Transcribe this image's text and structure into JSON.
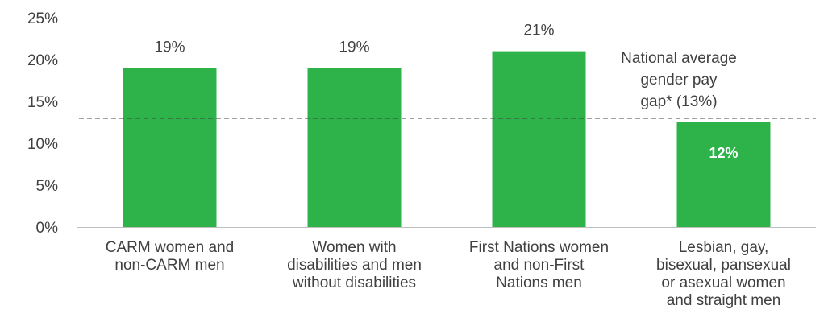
{
  "chart_data": {
    "type": "bar",
    "categories": [
      [
        "CARM women and",
        "non-CARM men"
      ],
      [
        "Women with",
        "disabilities and men",
        "without disabilities"
      ],
      [
        "First Nations women",
        "and non-First",
        "Nations men"
      ],
      [
        "Lesbian, gay,",
        "bisexual, pansexual",
        "or asexual women",
        "and straight men"
      ]
    ],
    "values": [
      19,
      19,
      21,
      12.5
    ],
    "data_labels": [
      "19%",
      "19%",
      "21%",
      "12%"
    ],
    "ylim": [
      0,
      25
    ],
    "yticks": [
      "0%",
      "5%",
      "10%",
      "15%",
      "20%",
      "25%"
    ],
    "ytick_values": [
      0,
      5,
      10,
      15,
      20,
      25
    ],
    "reference_line": {
      "value": 13,
      "label": [
        "National average",
        "gender pay",
        "gap* (13%)"
      ],
      "style": "dashed"
    },
    "bar_color": "#2db34a",
    "grid": false,
    "legend": "none"
  }
}
